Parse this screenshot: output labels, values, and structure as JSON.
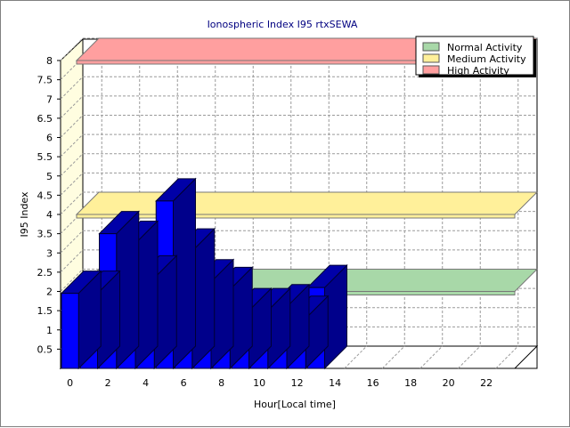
{
  "chart_data": {
    "type": "bar",
    "title": "Ionospheric Index I95 rtxSEWA",
    "xlabel": "Hour[Local time]",
    "ylabel": "I95 Index",
    "xlim": [
      0,
      24
    ],
    "ylim": [
      0,
      8
    ],
    "x_ticks": [
      "0",
      "2",
      "4",
      "6",
      "8",
      "10",
      "12",
      "14",
      "16",
      "18",
      "20",
      "22"
    ],
    "y_ticks": [
      "0.5",
      "1",
      "1.5",
      "2",
      "2.5",
      "3",
      "3.5",
      "4",
      "4.5",
      "5",
      "5.5",
      "6",
      "6.5",
      "7",
      "7.5",
      "8"
    ],
    "x": [
      0,
      1,
      2,
      3,
      4,
      5,
      6,
      7,
      8,
      9,
      10,
      11,
      12,
      13
    ],
    "values": [
      1.95,
      1.95,
      3.5,
      3.25,
      2.35,
      4.35,
      3.05,
      2.25,
      2.05,
      1.5,
      1.5,
      1.6,
      1.3,
      2.1
    ],
    "bar_color": "#0000ff",
    "bands": [
      {
        "name": "Normal Activity",
        "value": 2.0,
        "color": "#a8d8a8"
      },
      {
        "name": "Medium Activity",
        "value": 4.0,
        "color": "#fff09a"
      },
      {
        "name": "High Activity",
        "value": 8.0,
        "color": "#ff9f9f"
      }
    ],
    "grid": true,
    "legend_position": "top-right"
  }
}
